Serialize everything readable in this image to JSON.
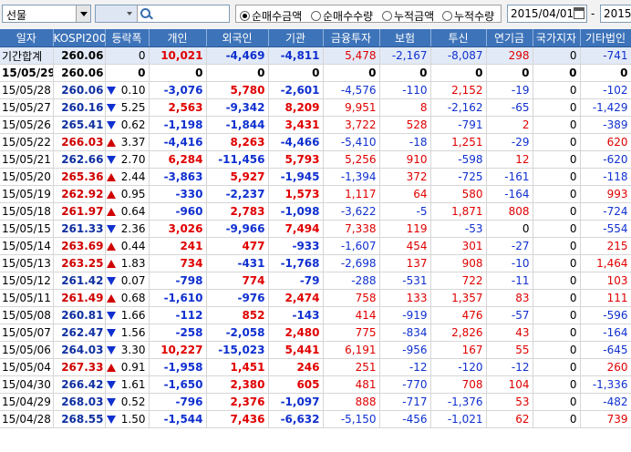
{
  "toolbar": {
    "market_select": "선물",
    "radios": [
      "순매수금액",
      "순매수수량",
      "누적금액",
      "누적수량"
    ],
    "radio_selected": 0,
    "date_from": "2015/04/01",
    "date_sep": "-",
    "date_to": "2015/"
  },
  "columns": [
    "일자",
    "KOSPI200",
    "등락폭",
    "개인",
    "외국인",
    "기관",
    "금융투자",
    "보험",
    "투신",
    "연기금",
    "국가지자",
    "기타법인"
  ],
  "summary": [
    {
      "date": "기간합계",
      "idx": "260.06",
      "dir": "",
      "chg": "0",
      "indiv": "10,021",
      "foreign": "-4,469",
      "inst": "-4,811",
      "fin": "5,478",
      "ins": "-2,167",
      "trust": "-8,087",
      "pension": "298",
      "gov": "0",
      "etc": "-741"
    },
    {
      "date": "15/05/29",
      "idx": "260.06",
      "dir": "",
      "chg": "0",
      "indiv": "0",
      "foreign": "0",
      "inst": "0",
      "fin": "0",
      "ins": "0",
      "trust": "0",
      "pension": "0",
      "gov": "0",
      "etc": "0"
    }
  ],
  "rows": [
    {
      "date": "15/05/28",
      "idx": "260.06",
      "dir": "down",
      "chg": "0.10",
      "indiv": "-3,076",
      "foreign": "5,780",
      "inst": "-2,601",
      "fin": "-4,576",
      "ins": "-110",
      "trust": "2,152",
      "pension": "-19",
      "gov": "0",
      "etc": "-102"
    },
    {
      "date": "15/05/27",
      "idx": "260.16",
      "dir": "down",
      "chg": "5.25",
      "indiv": "2,563",
      "foreign": "-9,342",
      "inst": "8,209",
      "fin": "9,951",
      "ins": "8",
      "trust": "-2,162",
      "pension": "-65",
      "gov": "0",
      "etc": "-1,429"
    },
    {
      "date": "15/05/26",
      "idx": "265.41",
      "dir": "down",
      "chg": "0.62",
      "indiv": "-1,198",
      "foreign": "-1,844",
      "inst": "3,431",
      "fin": "3,722",
      "ins": "528",
      "trust": "-791",
      "pension": "2",
      "gov": "0",
      "etc": "-389"
    },
    {
      "date": "15/05/22",
      "idx": "266.03",
      "dir": "up",
      "chg": "3.37",
      "indiv": "-4,416",
      "foreign": "8,263",
      "inst": "-4,466",
      "fin": "-5,410",
      "ins": "-18",
      "trust": "1,251",
      "pension": "-29",
      "gov": "0",
      "etc": "620"
    },
    {
      "date": "15/05/21",
      "idx": "262.66",
      "dir": "down",
      "chg": "2.70",
      "indiv": "6,284",
      "foreign": "-11,456",
      "inst": "5,793",
      "fin": "5,256",
      "ins": "910",
      "trust": "-598",
      "pension": "12",
      "gov": "0",
      "etc": "-620"
    },
    {
      "date": "15/05/20",
      "idx": "265.36",
      "dir": "up",
      "chg": "2.44",
      "indiv": "-3,863",
      "foreign": "5,927",
      "inst": "-1,945",
      "fin": "-1,394",
      "ins": "372",
      "trust": "-725",
      "pension": "-161",
      "gov": "0",
      "etc": "-118"
    },
    {
      "date": "15/05/19",
      "idx": "262.92",
      "dir": "up",
      "chg": "0.95",
      "indiv": "-330",
      "foreign": "-2,237",
      "inst": "1,573",
      "fin": "1,117",
      "ins": "64",
      "trust": "580",
      "pension": "-164",
      "gov": "0",
      "etc": "993"
    },
    {
      "date": "15/05/18",
      "idx": "261.97",
      "dir": "up",
      "chg": "0.64",
      "indiv": "-960",
      "foreign": "2,783",
      "inst": "-1,098",
      "fin": "-3,622",
      "ins": "-5",
      "trust": "1,871",
      "pension": "808",
      "gov": "0",
      "etc": "-724"
    },
    {
      "date": "15/05/15",
      "idx": "261.33",
      "dir": "down",
      "chg": "2.36",
      "indiv": "3,026",
      "foreign": "-9,966",
      "inst": "7,494",
      "fin": "7,338",
      "ins": "119",
      "trust": "-53",
      "pension": "0",
      "gov": "0",
      "etc": "-554"
    },
    {
      "date": "15/05/14",
      "idx": "263.69",
      "dir": "up",
      "chg": "0.44",
      "indiv": "241",
      "foreign": "477",
      "inst": "-933",
      "fin": "-1,607",
      "ins": "454",
      "trust": "301",
      "pension": "-27",
      "gov": "0",
      "etc": "215"
    },
    {
      "date": "15/05/13",
      "idx": "263.25",
      "dir": "up",
      "chg": "1.83",
      "indiv": "734",
      "foreign": "-431",
      "inst": "-1,768",
      "fin": "-2,698",
      "ins": "137",
      "trust": "908",
      "pension": "-10",
      "gov": "0",
      "etc": "1,464"
    },
    {
      "date": "15/05/12",
      "idx": "261.42",
      "dir": "down",
      "chg": "0.07",
      "indiv": "-798",
      "foreign": "774",
      "inst": "-79",
      "fin": "-288",
      "ins": "-531",
      "trust": "722",
      "pension": "-11",
      "gov": "0",
      "etc": "103"
    },
    {
      "date": "15/05/11",
      "idx": "261.49",
      "dir": "up",
      "chg": "0.68",
      "indiv": "-1,610",
      "foreign": "-976",
      "inst": "2,474",
      "fin": "758",
      "ins": "133",
      "trust": "1,357",
      "pension": "83",
      "gov": "0",
      "etc": "111"
    },
    {
      "date": "15/05/08",
      "idx": "260.81",
      "dir": "down",
      "chg": "1.66",
      "indiv": "-112",
      "foreign": "852",
      "inst": "-143",
      "fin": "414",
      "ins": "-919",
      "trust": "476",
      "pension": "-57",
      "gov": "0",
      "etc": "-596"
    },
    {
      "date": "15/05/07",
      "idx": "262.47",
      "dir": "down",
      "chg": "1.56",
      "indiv": "-258",
      "foreign": "-2,058",
      "inst": "2,480",
      "fin": "775",
      "ins": "-834",
      "trust": "2,826",
      "pension": "43",
      "gov": "0",
      "etc": "-164"
    },
    {
      "date": "15/05/06",
      "idx": "264.03",
      "dir": "down",
      "chg": "3.30",
      "indiv": "10,227",
      "foreign": "-15,023",
      "inst": "5,441",
      "fin": "6,191",
      "ins": "-956",
      "trust": "167",
      "pension": "55",
      "gov": "0",
      "etc": "-645"
    },
    {
      "date": "15/05/04",
      "idx": "267.33",
      "dir": "up",
      "chg": "0.91",
      "indiv": "-1,958",
      "foreign": "1,451",
      "inst": "246",
      "fin": "251",
      "ins": "-12",
      "trust": "-120",
      "pension": "-12",
      "gov": "0",
      "etc": "260"
    },
    {
      "date": "15/04/30",
      "idx": "266.42",
      "dir": "down",
      "chg": "1.61",
      "indiv": "-1,650",
      "foreign": "2,380",
      "inst": "605",
      "fin": "481",
      "ins": "-770",
      "trust": "708",
      "pension": "104",
      "gov": "0",
      "etc": "-1,336"
    },
    {
      "date": "15/04/29",
      "idx": "268.03",
      "dir": "down",
      "chg": "0.52",
      "indiv": "-796",
      "foreign": "2,376",
      "inst": "-1,097",
      "fin": "888",
      "ins": "-717",
      "trust": "-1,376",
      "pension": "53",
      "gov": "0",
      "etc": "-482"
    },
    {
      "date": "15/04/28",
      "idx": "268.55",
      "dir": "down",
      "chg": "1.50",
      "indiv": "-1,544",
      "foreign": "7,436",
      "inst": "-6,632",
      "fin": "-5,150",
      "ins": "-456",
      "trust": "-1,021",
      "pension": "62",
      "gov": "0",
      "etc": "739"
    }
  ]
}
